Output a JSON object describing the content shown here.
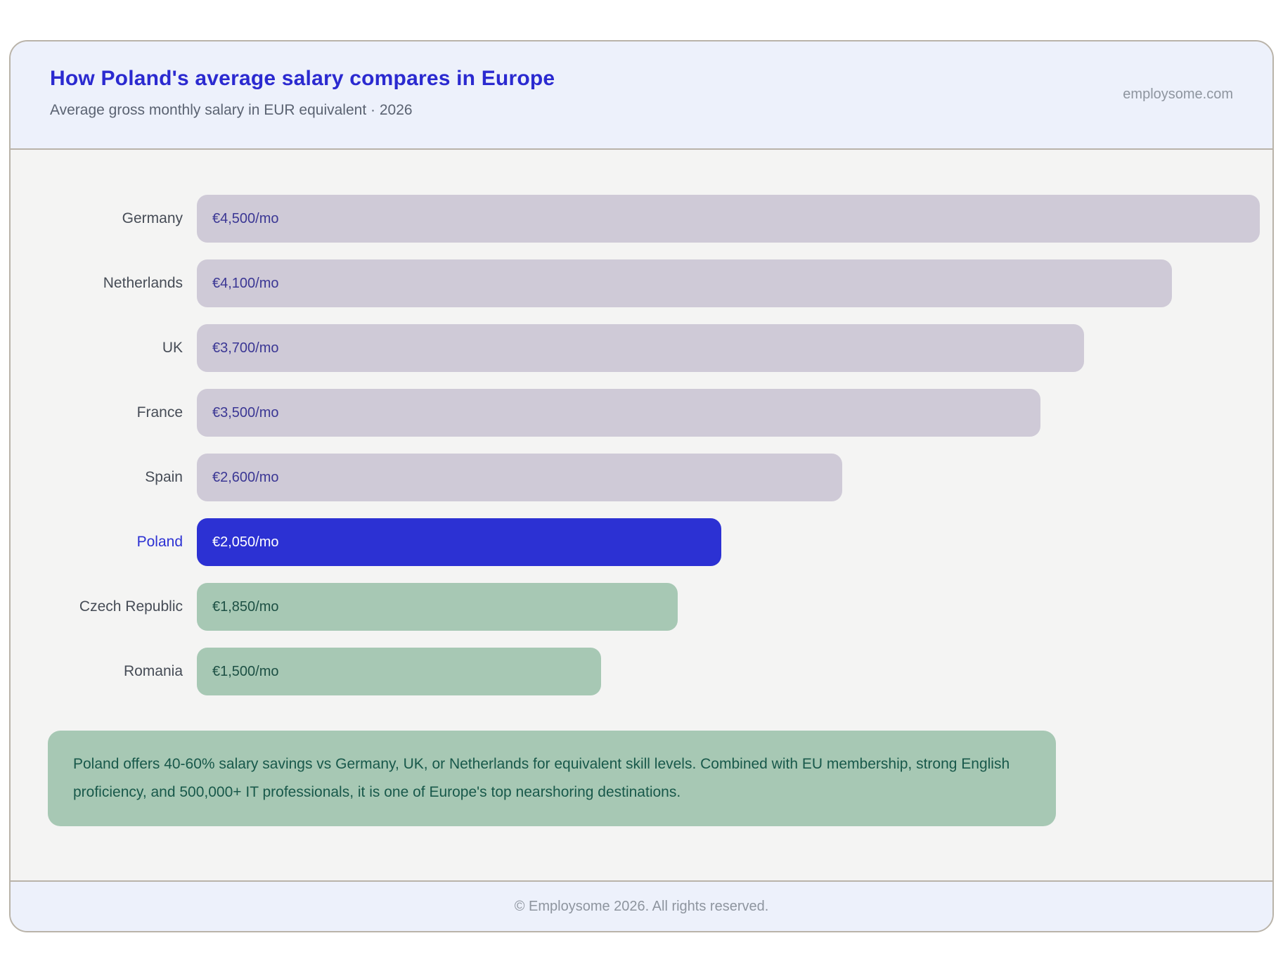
{
  "header": {
    "title": "How Poland's average salary compares in Europe",
    "subtitle": "Average gross monthly salary in EUR equivalent · 2026",
    "watermark": "employsome.com"
  },
  "chart_data": {
    "type": "bar",
    "orientation": "horizontal",
    "title": "How Poland's average salary compares in Europe",
    "subtitle": "Average gross monthly salary in EUR equivalent · 2026",
    "categories": [
      "Germany",
      "Netherlands",
      "UK",
      "France",
      "Spain",
      "Poland",
      "Czech Republic",
      "Romania"
    ],
    "values": [
      4500,
      4100,
      3700,
      3500,
      2600,
      2050,
      1850,
      1500
    ],
    "value_labels": [
      "€4,500/mo",
      "€4,100/mo",
      "€3,700/mo",
      "€3,500/mo",
      "€2,600/mo",
      "€2,050/mo",
      "€1,850/mo",
      "€1,500/mo"
    ],
    "themes": [
      "muted",
      "muted",
      "muted",
      "muted",
      "muted",
      "highlight",
      "positive",
      "positive"
    ],
    "highlight_category": "Poland",
    "xlim": [
      0,
      4500
    ],
    "grid": false,
    "legend": false,
    "bar_width_rule": {
      "base_pct": 7,
      "span_pct": 93
    },
    "colors": {
      "muted": {
        "bar": "#cfcad7",
        "text": "#3b3794",
        "label": "#464c56"
      },
      "highlight": {
        "bar": "#2c31d3",
        "text": "#ffffff",
        "label": "#2c31d3"
      },
      "positive": {
        "bar": "#a7c8b4",
        "text": "#1d5044",
        "label": "#464c56"
      }
    }
  },
  "note": {
    "text": "Poland offers 40-60% salary savings vs Germany, UK, or Netherlands for equivalent skill levels. Combined with EU membership, strong English proficiency, and 500,000+ IT professionals, it is one of Europe's top nearshoring destinations."
  },
  "footer": {
    "copyright": "© Employsome 2026. All rights reserved."
  }
}
